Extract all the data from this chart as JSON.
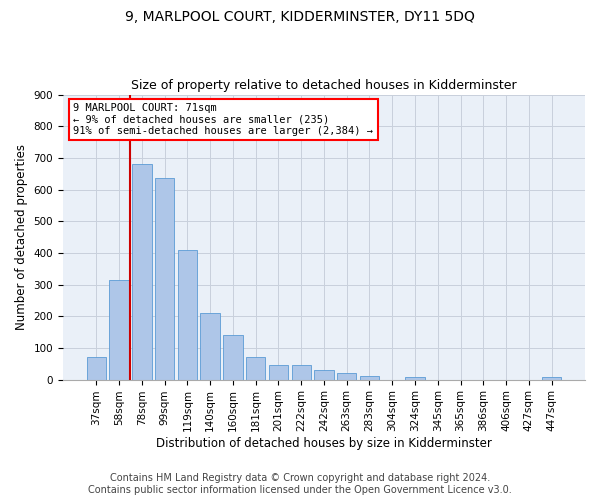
{
  "title": "9, MARLPOOL COURT, KIDDERMINSTER, DY11 5DQ",
  "subtitle": "Size of property relative to detached houses in Kidderminster",
  "xlabel": "Distribution of detached houses by size in Kidderminster",
  "ylabel": "Number of detached properties",
  "footer1": "Contains HM Land Registry data © Crown copyright and database right 2024.",
  "footer2": "Contains public sector information licensed under the Open Government Licence v3.0.",
  "categories": [
    "37sqm",
    "58sqm",
    "78sqm",
    "99sqm",
    "119sqm",
    "140sqm",
    "160sqm",
    "181sqm",
    "201sqm",
    "222sqm",
    "242sqm",
    "263sqm",
    "283sqm",
    "304sqm",
    "324sqm",
    "345sqm",
    "365sqm",
    "386sqm",
    "406sqm",
    "427sqm",
    "447sqm"
  ],
  "values": [
    70,
    315,
    680,
    635,
    410,
    210,
    140,
    70,
    45,
    45,
    30,
    22,
    12,
    0,
    7,
    0,
    0,
    0,
    0,
    0,
    8
  ],
  "bar_color": "#aec6e8",
  "bar_edge_color": "#5b9bd5",
  "bar_width": 0.85,
  "ylim": [
    0,
    900
  ],
  "yticks": [
    0,
    100,
    200,
    300,
    400,
    500,
    600,
    700,
    800,
    900
  ],
  "vline_x": 1.5,
  "vline_color": "#cc0000",
  "annotation_text": "9 MARLPOOL COURT: 71sqm\n← 9% of detached houses are smaller (235)\n91% of semi-detached houses are larger (2,384) →",
  "bg_color": "#ffffff",
  "plot_bg_color": "#eaf0f8",
  "grid_color": "#c8d0dc",
  "title_fontsize": 10,
  "subtitle_fontsize": 9,
  "label_fontsize": 8.5,
  "tick_fontsize": 7.5,
  "footer_fontsize": 7
}
